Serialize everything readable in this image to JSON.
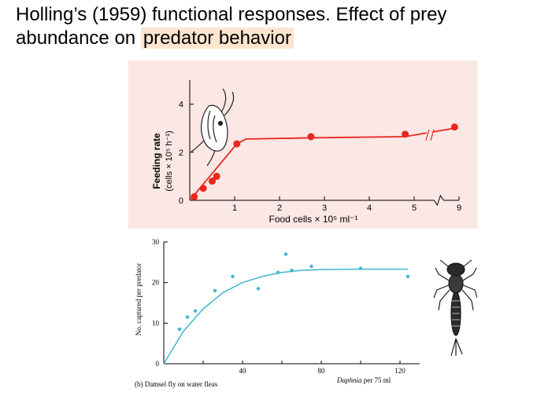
{
  "slide": {
    "title_part1": "Holling’s (1959) functional responses.  Effect of prey abundance on ",
    "title_highlight": "predator behavior"
  },
  "colors": {
    "top_background": "#fbe7e3",
    "top_series": "#e8271f",
    "bottom_series": "#3fb5d1",
    "title_highlight": "#fde5cf"
  },
  "icons": {
    "top": "daphnia-illustration",
    "bottom": "damselfly-nymph-illustration"
  },
  "chart_data": [
    {
      "type": "line",
      "title": "",
      "xlabel": "Food cells × 10⁵ ml⁻¹",
      "ylabel_line1": "Feeding rate",
      "ylabel_line2": "(cells × 10⁵ h⁻¹)",
      "x_ticks": [
        "1",
        "2",
        "3",
        "4",
        "5",
        "9"
      ],
      "y_ticks": [
        "0",
        "2",
        "4"
      ],
      "xlim": [
        0,
        6
      ],
      "ylim": [
        0,
        5
      ],
      "axis_break": true,
      "grid": false,
      "points": [
        {
          "x": 0.1,
          "y": 0.15
        },
        {
          "x": 0.3,
          "y": 0.5
        },
        {
          "x": 0.5,
          "y": 0.8
        },
        {
          "x": 0.6,
          "y": 1.0
        },
        {
          "x": 1.05,
          "y": 2.35
        },
        {
          "x": 2.7,
          "y": 2.65
        },
        {
          "x": 4.8,
          "y": 2.75
        },
        {
          "x": 5.9,
          "y": 3.05
        }
      ],
      "curve": [
        {
          "x": 0.0,
          "y": 0.0
        },
        {
          "x": 1.05,
          "y": 2.35
        },
        {
          "x": 1.25,
          "y": 2.55
        },
        {
          "x": 2.7,
          "y": 2.6
        },
        {
          "x": 4.8,
          "y": 2.65
        },
        {
          "x": 5.9,
          "y": 3.0
        }
      ]
    },
    {
      "type": "scatter",
      "title": "",
      "panel_label": "(b) Damsel fly on water fleas",
      "xlabel_italic": "Daphnia",
      "xlabel_rest": " per 75 ml",
      "ylabel": "No. captured per predator",
      "x_ticks": [
        "40",
        "80",
        "120"
      ],
      "y_ticks": [
        "0",
        "10",
        "20",
        "30"
      ],
      "xlim": [
        0,
        130
      ],
      "ylim": [
        0,
        30
      ],
      "grid": false,
      "points": [
        {
          "x": 8,
          "y": 8.5
        },
        {
          "x": 12,
          "y": 11.5
        },
        {
          "x": 16,
          "y": 13
        },
        {
          "x": 26,
          "y": 18
        },
        {
          "x": 35,
          "y": 21.5
        },
        {
          "x": 48,
          "y": 18.5
        },
        {
          "x": 58,
          "y": 22.5
        },
        {
          "x": 62,
          "y": 27
        },
        {
          "x": 65,
          "y": 23
        },
        {
          "x": 75,
          "y": 24
        },
        {
          "x": 100,
          "y": 23.5
        },
        {
          "x": 124,
          "y": 21.5
        }
      ],
      "curve": [
        {
          "x": 0,
          "y": 0
        },
        {
          "x": 10,
          "y": 8
        },
        {
          "x": 20,
          "y": 13.5
        },
        {
          "x": 30,
          "y": 17.5
        },
        {
          "x": 40,
          "y": 20
        },
        {
          "x": 50,
          "y": 21.5
        },
        {
          "x": 60,
          "y": 22.5
        },
        {
          "x": 70,
          "y": 23
        },
        {
          "x": 80,
          "y": 23.2
        },
        {
          "x": 100,
          "y": 23.3
        },
        {
          "x": 124,
          "y": 23.3
        }
      ]
    }
  ]
}
